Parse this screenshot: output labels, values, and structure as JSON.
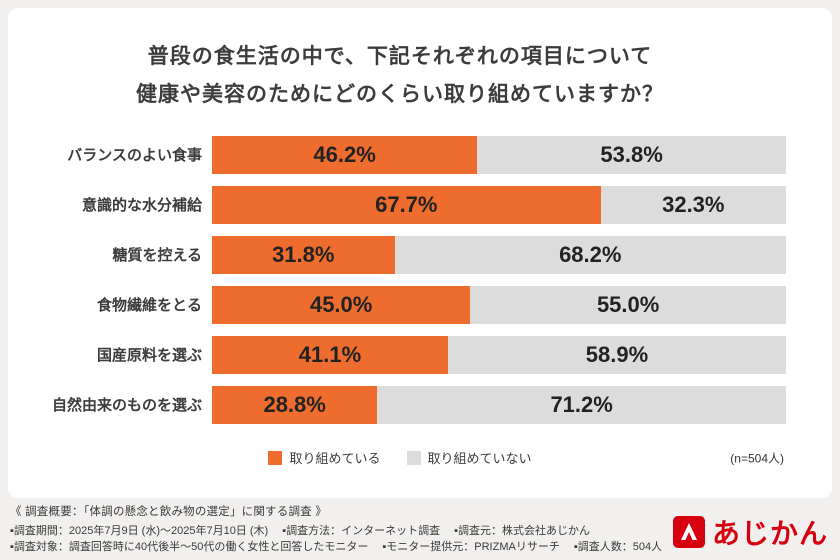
{
  "title": {
    "line1": "普段の食生活の中で、下記それぞれの項目について",
    "line2": "健康や美容のためにどのくらい取り組めていますか？"
  },
  "chart_data": {
    "type": "bar",
    "orientation": "horizontal",
    "stacked": true,
    "categories": [
      "バランスのよい食事",
      "意識的な水分補給",
      "糖質を控える",
      "食物繊維をとる",
      "国産原料を選ぶ",
      "自然由来のものを選ぶ"
    ],
    "series": [
      {
        "name": "取り組めている",
        "color": "#ee6c2d",
        "values": [
          46.2,
          67.7,
          31.8,
          45.0,
          41.1,
          28.8
        ]
      },
      {
        "name": "取り組めていない",
        "color": "#dcdcdc",
        "values": [
          53.8,
          32.3,
          68.2,
          55.0,
          58.9,
          71.2
        ]
      }
    ],
    "value_suffix": "%",
    "xlim": [
      0,
      100
    ],
    "legend_position": "bottom",
    "n_label": "(n=504人)"
  },
  "footer": {
    "overview": "《 調査概要：「体調の懸念と飲み物の選定」に関する調査 》",
    "notes_line2": [
      "▪調査期間：2025年7月9日 (水)～2025年7月10日 (木)",
      "▪調査方法：インターネット調査",
      "▪調査元：株式会社あじかん"
    ],
    "notes_line3": [
      "▪調査対象：調査回答時に40代後半～50代の働く女性と回答したモニター",
      "▪モニター提供元：PRIZMAリサーチ",
      "▪調査人数：504人"
    ]
  },
  "logo": {
    "text": "あじかん",
    "color": "#d7000f"
  }
}
